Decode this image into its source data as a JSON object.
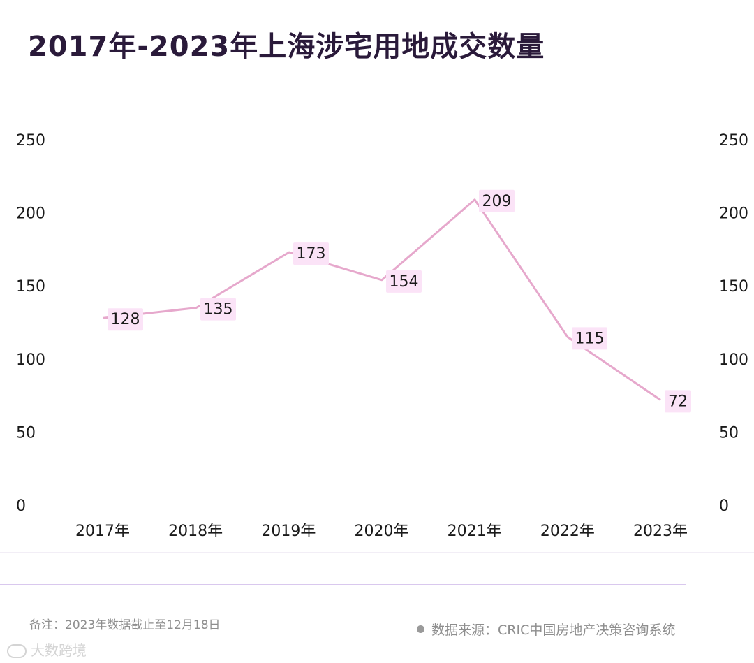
{
  "footnote": "备注：2023年数据截止至12月18日",
  "source": "数据来源：CRIC中国房地产决策咨询系统",
  "watermark": "大数跨境",
  "colors": {
    "line": "#e6a8cc",
    "label_bg": "#fbe3f7",
    "title": "#2a1a3a",
    "tick": "#1a1a1a"
  },
  "chart_data": {
    "type": "line",
    "title": "2017年-2023年上海涉宅用地成交数量",
    "categories": [
      "2017年",
      "2018年",
      "2019年",
      "2020年",
      "2021年",
      "2022年",
      "2023年"
    ],
    "values": [
      128,
      135,
      173,
      154,
      209,
      115,
      72
    ],
    "data_labels": [
      "128",
      "135",
      "173",
      "154",
      "209",
      "115",
      "72"
    ],
    "y_ticks": [
      "0",
      "50",
      "100",
      "150",
      "200",
      "250"
    ],
    "ylim": [
      0,
      250
    ],
    "xlabel": "",
    "ylabel": "",
    "grid": false,
    "legend": "none"
  }
}
